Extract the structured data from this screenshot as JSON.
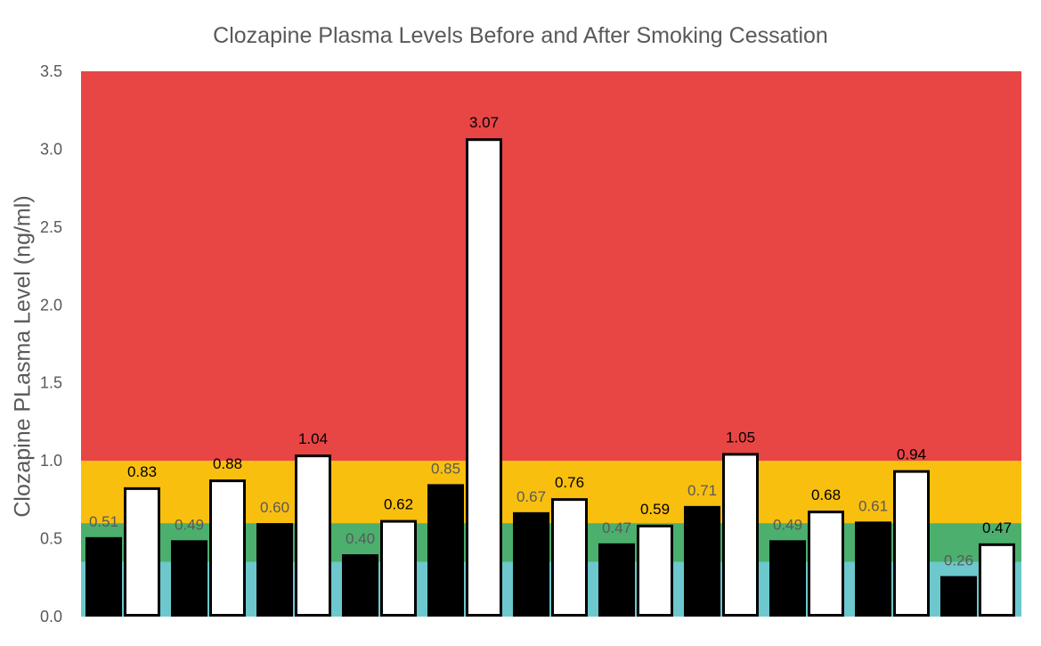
{
  "chart_data": {
    "type": "bar",
    "title": "Clozapine Plasma Levels Before and After Smoking Cessation",
    "xlabel": "",
    "ylabel": "Clozapine PLasma Level (ng/ml)",
    "ylim": [
      0,
      3.5
    ],
    "y_ticks": [
      "0.0",
      "0.5",
      "1.0",
      "1.5",
      "2.0",
      "2.5",
      "3.0",
      "3.5"
    ],
    "y_tick_values": [
      0,
      0.5,
      1.0,
      1.5,
      2.0,
      2.5,
      3.0,
      3.5
    ],
    "grid": false,
    "legend": "none",
    "background_bands": [
      {
        "from": 0,
        "to": 0.35,
        "color": "#6cc8cc"
      },
      {
        "from": 0.35,
        "to": 0.6,
        "color": "#4caf6e"
      },
      {
        "from": 0.6,
        "to": 1.0,
        "color": "#f9bf0f"
      },
      {
        "from": 1.0,
        "to": 3.5,
        "color": "#e84545"
      }
    ],
    "series": [
      {
        "values": [
          0.51,
          0.49,
          0.6,
          0.4,
          0.85,
          0.67,
          0.47,
          0.71,
          0.49,
          0.61,
          0.26
        ],
        "labels": [
          "0.51",
          "0.49",
          "0.60",
          "0.40",
          "0.85",
          "0.67",
          "0.47",
          "0.71",
          "0.49",
          "0.61",
          "0.26"
        ],
        "color": "#000000",
        "label_color": "#595959"
      },
      {
        "values": [
          0.83,
          0.88,
          1.04,
          0.62,
          3.07,
          0.76,
          0.59,
          1.05,
          0.68,
          0.94,
          0.47
        ],
        "labels": [
          "0.83",
          "0.88",
          "1.04",
          "0.62",
          "3.07",
          "0.76",
          "0.59",
          "1.05",
          "0.68",
          "0.94",
          "0.47"
        ],
        "color": "#ffffff",
        "outline": "#000000",
        "label_color": "#000000"
      }
    ]
  }
}
